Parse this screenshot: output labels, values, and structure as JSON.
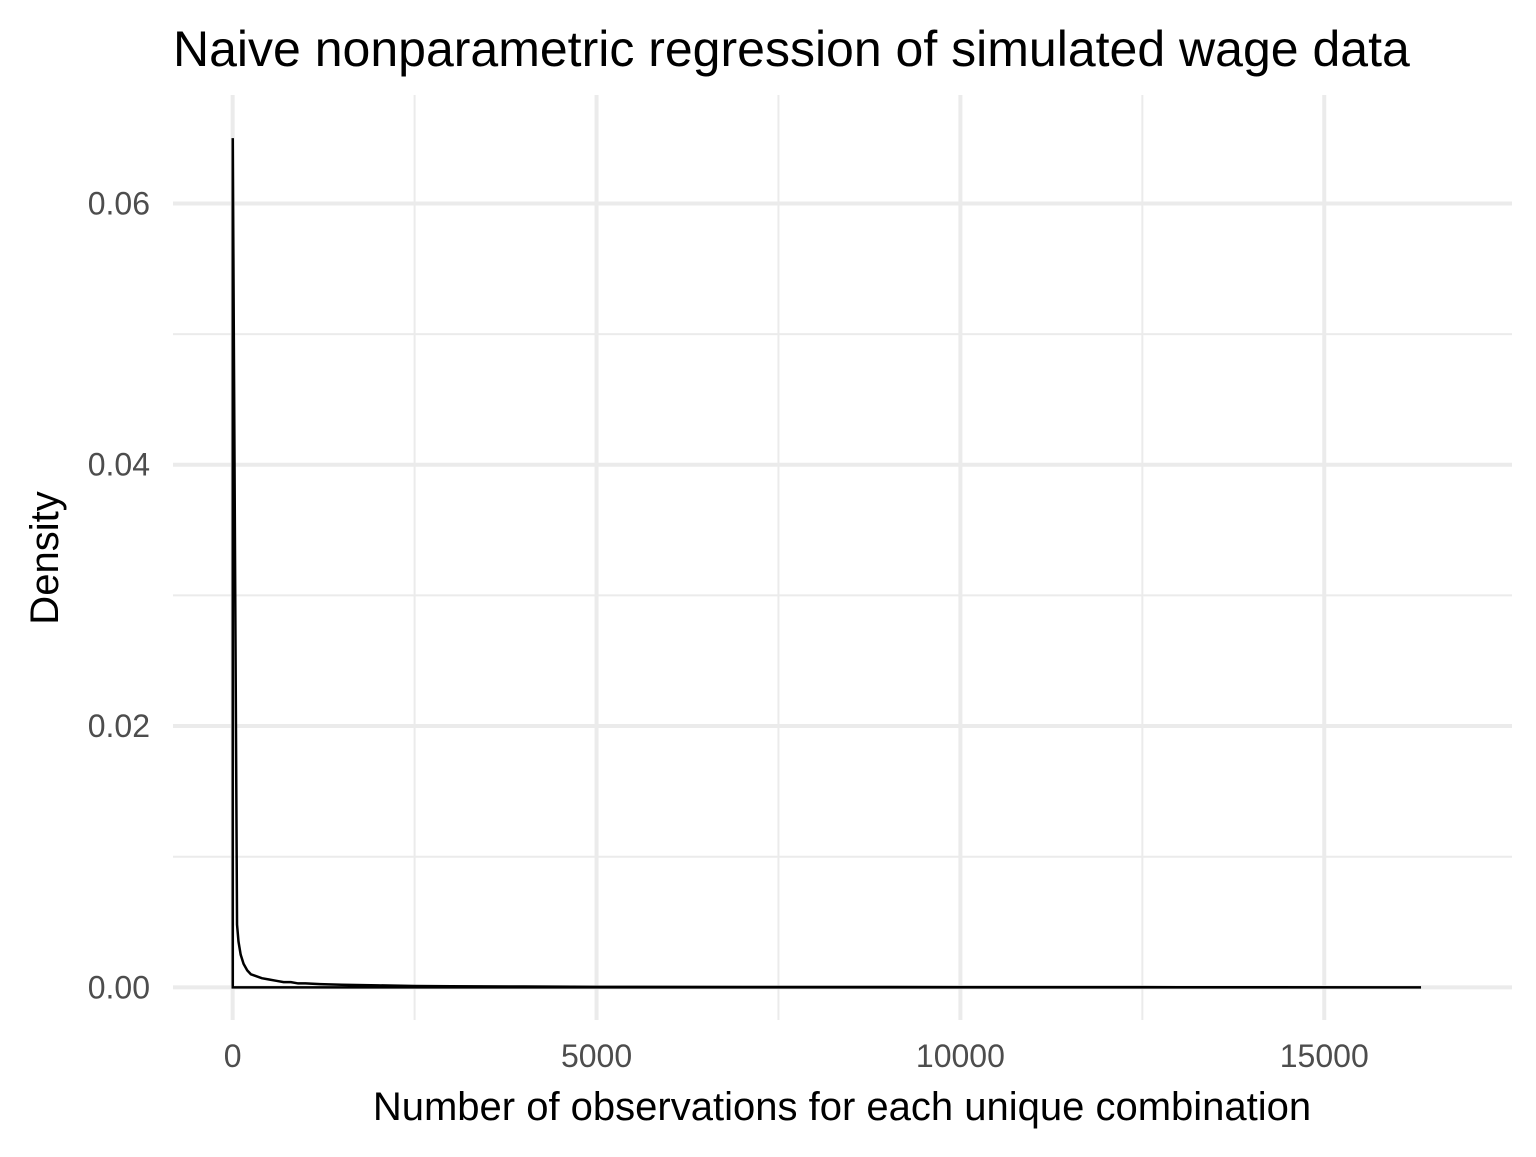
{
  "chart_data": {
    "type": "area",
    "title": "Naive nonparametric regression of simulated wage data",
    "xlabel": "Number of observations for each unique combination",
    "ylabel": "Density",
    "xlim": [
      -820,
      17580
    ],
    "ylim": [
      -0.0025,
      0.0683
    ],
    "x_ticks": [
      0,
      5000,
      10000,
      15000
    ],
    "x_tick_labels": [
      "0",
      "5000",
      "10000",
      "15000"
    ],
    "x_minor_ticks": [
      2500,
      7500,
      12500
    ],
    "y_ticks": [
      0.0,
      0.02,
      0.04,
      0.06
    ],
    "y_tick_labels": [
      "0.00",
      "0.02",
      "0.04",
      "0.06"
    ],
    "y_minor_ticks": [
      0.01,
      0.03,
      0.05
    ],
    "grid": true,
    "series": [
      {
        "fill": "none",
        "stroke": "#000000",
        "x": [
          1,
          60,
          80,
          110,
          150,
          200,
          250,
          300,
          400,
          500,
          600,
          700,
          800,
          900,
          1000,
          1200,
          1500,
          2000,
          2500,
          3000,
          4000,
          5000,
          7000,
          10000,
          13000,
          16330
        ],
        "y": [
          0.065,
          0.0048,
          0.0035,
          0.0025,
          0.0018,
          0.0013,
          0.001,
          0.0009,
          0.0007,
          0.0006,
          0.0005,
          0.0004,
          0.0004,
          0.0003,
          0.0003,
          0.00025,
          0.0002,
          0.00015,
          0.0001,
          8e-05,
          6e-05,
          4e-05,
          3e-05,
          2e-05,
          1e-05,
          0.0
        ]
      }
    ]
  }
}
